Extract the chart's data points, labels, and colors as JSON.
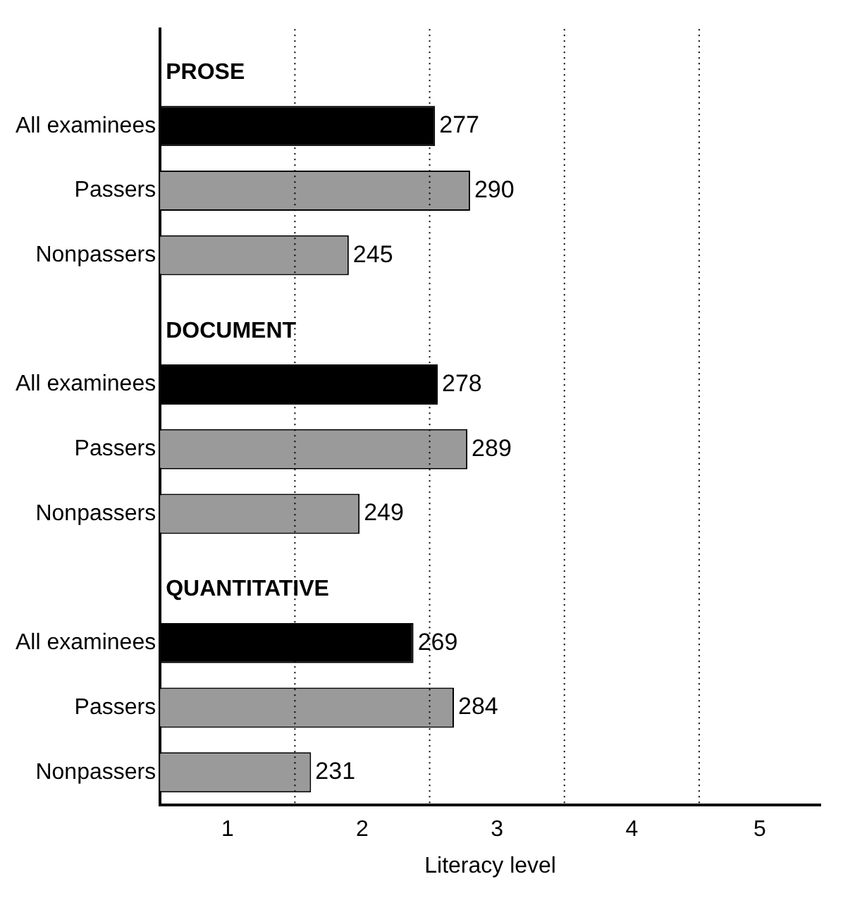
{
  "chart_data": {
    "type": "bar",
    "orientation": "horizontal",
    "xlabel": "Literacy level",
    "categories": [
      null,
      "All examinees",
      "Passers",
      "Nonpassers",
      null,
      "All examinees",
      "Passers",
      "Nonpassers",
      null,
      "All examinees",
      "Passers",
      "Nonpassers"
    ],
    "values": [
      null,
      277,
      290,
      245,
      null,
      278,
      289,
      249,
      null,
      269,
      284,
      231
    ],
    "colors": [
      null,
      "#000000",
      "#9a9a9a",
      "#9a9a9a",
      null,
      "#000000",
      "#9a9a9a",
      "#9a9a9a",
      null,
      "#000000",
      "#9a9a9a",
      "#9a9a9a"
    ],
    "annotations": [
      "PROSE",
      "DOCUMENT",
      "QUANTITATIVE",
      "1",
      "2",
      "3",
      "4",
      "5"
    ],
    "xlim": [
      175,
      420
    ],
    "tick_labels": "y",
    "ref_lines": [
      {
        "axis": "x",
        "value": 225,
        "line_style": "dotted"
      },
      {
        "axis": "x",
        "value": 275,
        "line_style": "dotted"
      },
      {
        "axis": "x",
        "value": 325,
        "line_style": "dotted"
      },
      {
        "axis": "x",
        "value": 375,
        "line_style": "dotted"
      }
    ],
    "data_labels": true,
    "legend": false,
    "grid": false
  }
}
